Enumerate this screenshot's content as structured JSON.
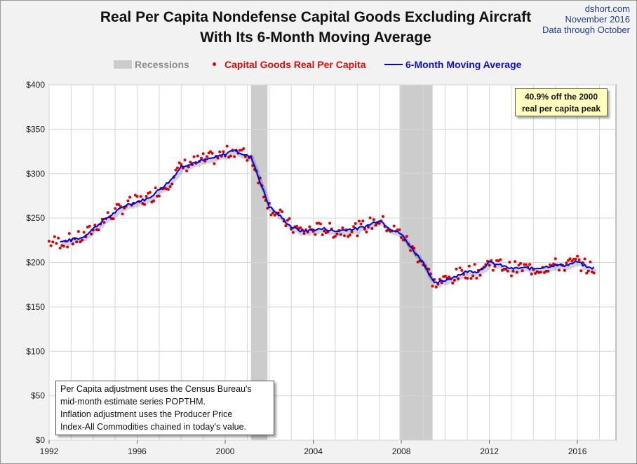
{
  "header": {
    "title_line1": "Real Per Capita Nondefense Capital Goods Excluding Aircraft",
    "title_line2": "With Its 6-Month Moving Average",
    "source_line1": "dshort.com",
    "source_line2": "November 2016",
    "source_line3": "Data through October"
  },
  "legend": {
    "recessions": "Recessions",
    "points": "Capital Goods Real Per Capita",
    "moving_average": "6-Month Moving Average"
  },
  "callout": {
    "line1": "40.9% off the 2000",
    "line2": "real per capita peak"
  },
  "note": {
    "line1": "Per Capita adjustment uses the Census Bureau's",
    "line2": "mid-month estimate series POPTHM.",
    "line3": "Inflation adjustment uses the Producer Price",
    "line4": "Index-All Commodities chained in today's value."
  },
  "colors": {
    "points": "#e00000",
    "moving_average": "#0000dd",
    "recession": "#cccccc"
  },
  "chart_data": {
    "type": "scatter",
    "title": "Real Per Capita Nondefense Capital Goods Excluding Aircraft With Its 6-Month Moving Average",
    "xlabel": "",
    "ylabel": "",
    "xlim": [
      1992,
      2017.75
    ],
    "ylim": [
      0,
      400
    ],
    "y_ticks": [
      0,
      50,
      100,
      150,
      200,
      250,
      300,
      350,
      400
    ],
    "y_tick_labels": [
      "$0",
      "$50",
      "$100",
      "$150",
      "$200",
      "$250",
      "$300",
      "$350",
      "$400"
    ],
    "x_ticks": [
      1992,
      1996,
      2000,
      2004,
      2008,
      2012,
      2016
    ],
    "x_tick_labels": [
      "1992",
      "1996",
      "2000",
      "2004",
      "2008",
      "2012",
      "2016"
    ],
    "grid": true,
    "legend_position": "top-center",
    "recessions": [
      [
        2001.17,
        2001.92
      ],
      [
        2007.92,
        2009.42
      ]
    ],
    "moving_average_anchors": [
      [
        1992.5,
        223
      ],
      [
        1993.5,
        228
      ],
      [
        1994.5,
        248
      ],
      [
        1995.5,
        265
      ],
      [
        1996.5,
        272
      ],
      [
        1997.5,
        292
      ],
      [
        1998.0,
        308
      ],
      [
        1998.5,
        312
      ],
      [
        1999.5,
        318
      ],
      [
        2000.0,
        322
      ],
      [
        2000.4,
        327
      ],
      [
        2000.8,
        322
      ],
      [
        2001.2,
        318
      ],
      [
        2001.6,
        290
      ],
      [
        2002.0,
        263
      ],
      [
        2002.5,
        252
      ],
      [
        2003.0,
        240
      ],
      [
        2003.5,
        235
      ],
      [
        2004.0,
        237
      ],
      [
        2004.5,
        238
      ],
      [
        2005.0,
        235
      ],
      [
        2005.5,
        237
      ],
      [
        2006.0,
        238
      ],
      [
        2006.5,
        242
      ],
      [
        2007.0,
        248
      ],
      [
        2007.5,
        238
      ],
      [
        2008.0,
        232
      ],
      [
        2008.5,
        215
      ],
      [
        2009.0,
        200
      ],
      [
        2009.5,
        176
      ],
      [
        2010.0,
        180
      ],
      [
        2010.5,
        185
      ],
      [
        2011.0,
        190
      ],
      [
        2011.5,
        190
      ],
      [
        2012.0,
        200
      ],
      [
        2012.5,
        197
      ],
      [
        2013.0,
        193
      ],
      [
        2013.5,
        194
      ],
      [
        2014.0,
        193
      ],
      [
        2014.5,
        195
      ],
      [
        2015.0,
        197
      ],
      [
        2015.5,
        197
      ],
      [
        2016.0,
        201
      ],
      [
        2016.5,
        194
      ],
      [
        2016.75,
        194
      ]
    ]
  }
}
